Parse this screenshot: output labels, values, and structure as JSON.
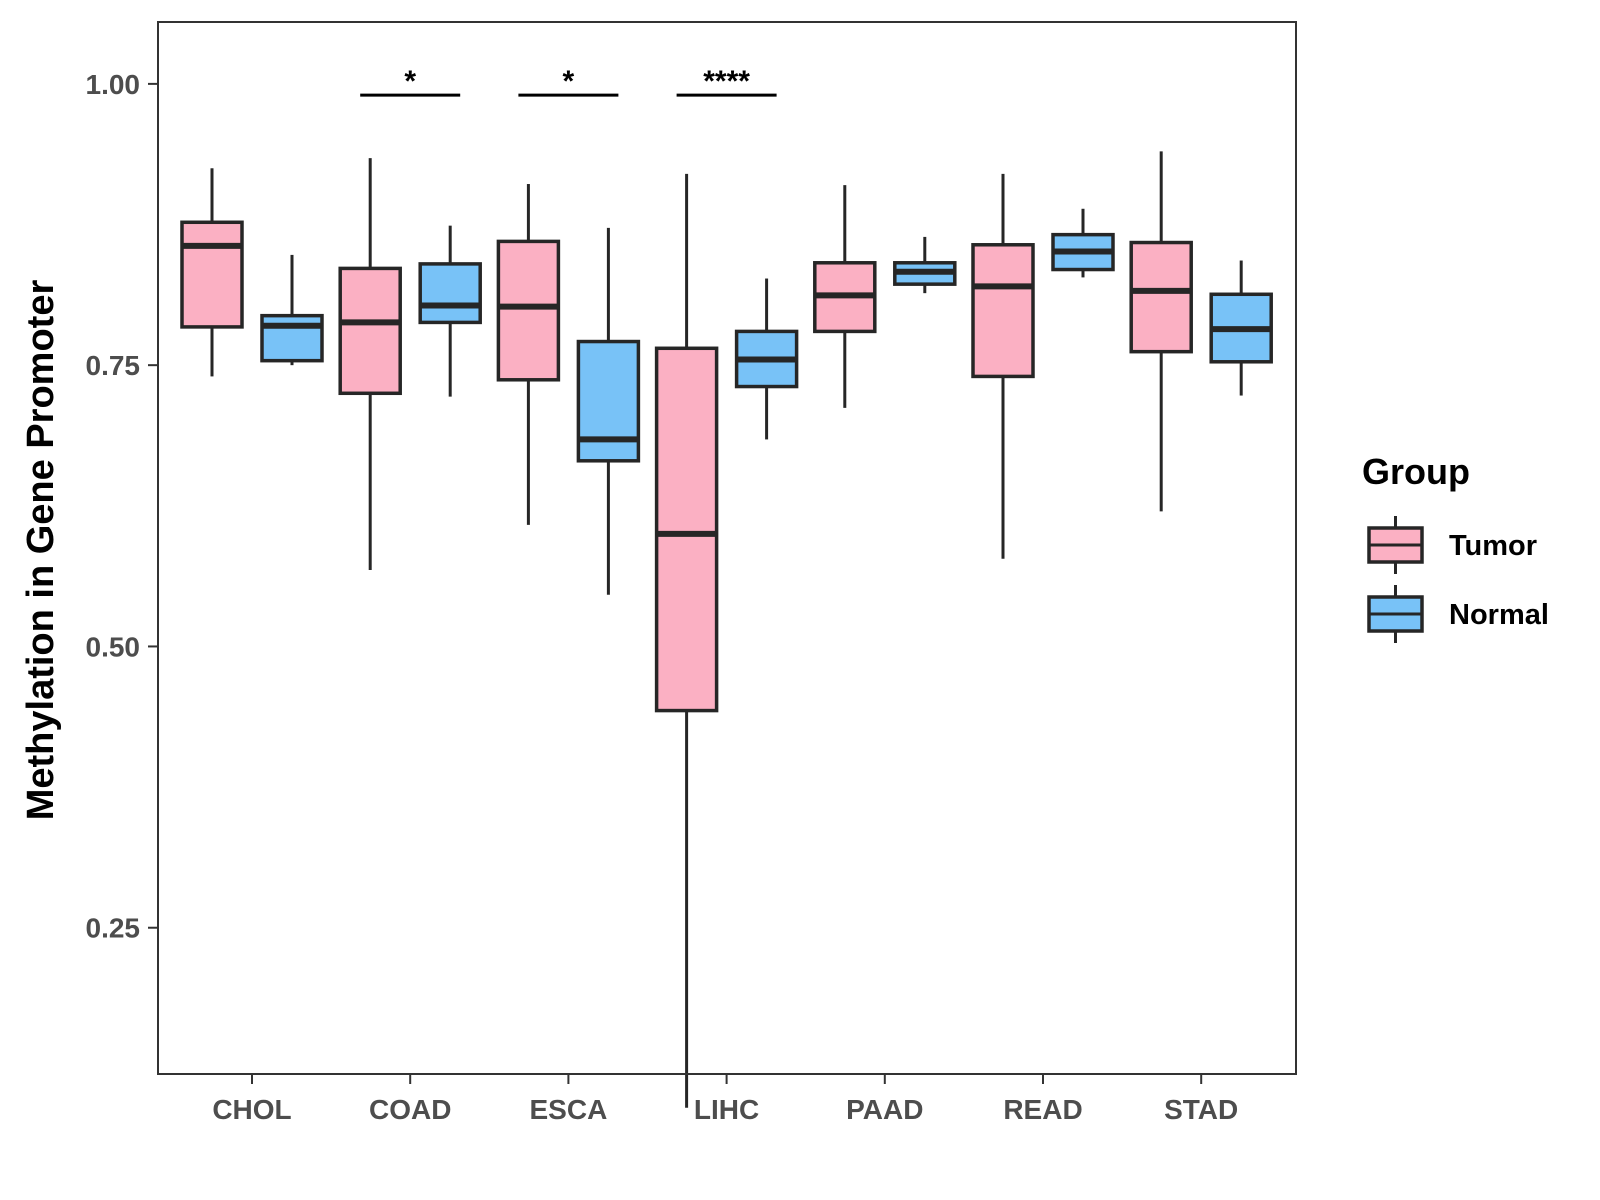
{
  "chart_data": {
    "type": "box",
    "title": "",
    "xlabel": "",
    "ylabel": "Methylation in Gene Promoter",
    "ylim": [
      0.12,
      1.055
    ],
    "yticks": [
      0.25,
      0.5,
      0.75,
      1.0
    ],
    "ytick_labels": [
      "0.25",
      "0.50",
      "0.75",
      "1.00"
    ],
    "categories": [
      "CHOL",
      "COAD",
      "ESCA",
      "LIHC",
      "PAAD",
      "READ",
      "STAD"
    ],
    "legend": {
      "title": "Group",
      "position": "right",
      "items": [
        {
          "name": "Tumor",
          "color": "#fbb0c3"
        },
        {
          "name": "Normal",
          "color": "#78c2f7"
        }
      ]
    },
    "series": [
      {
        "name": "Tumor",
        "color": "#fbb0c3",
        "boxes": [
          {
            "min": 0.74,
            "q1": 0.784,
            "median": 0.856,
            "q3": 0.877,
            "max": 0.925
          },
          {
            "min": 0.568,
            "q1": 0.725,
            "median": 0.788,
            "q3": 0.836,
            "max": 0.934
          },
          {
            "min": 0.608,
            "q1": 0.737,
            "median": 0.802,
            "q3": 0.86,
            "max": 0.911
          },
          {
            "min": 0.09,
            "q1": 0.443,
            "median": 0.6,
            "q3": 0.765,
            "max": 0.92
          },
          {
            "min": 0.712,
            "q1": 0.78,
            "median": 0.812,
            "q3": 0.841,
            "max": 0.91
          },
          {
            "min": 0.578,
            "q1": 0.74,
            "median": 0.82,
            "q3": 0.857,
            "max": 0.92
          },
          {
            "min": 0.62,
            "q1": 0.762,
            "median": 0.816,
            "q3": 0.859,
            "max": 0.94
          }
        ]
      },
      {
        "name": "Normal",
        "color": "#78c2f7",
        "boxes": [
          {
            "min": 0.75,
            "q1": 0.754,
            "median": 0.785,
            "q3": 0.794,
            "max": 0.848
          },
          {
            "min": 0.722,
            "q1": 0.788,
            "median": 0.803,
            "q3": 0.84,
            "max": 0.874
          },
          {
            "min": 0.546,
            "q1": 0.665,
            "median": 0.684,
            "q3": 0.771,
            "max": 0.872
          },
          {
            "min": 0.684,
            "q1": 0.731,
            "median": 0.755,
            "q3": 0.78,
            "max": 0.827
          },
          {
            "min": 0.814,
            "q1": 0.822,
            "median": 0.833,
            "q3": 0.841,
            "max": 0.864
          },
          {
            "min": 0.828,
            "q1": 0.835,
            "median": 0.851,
            "q3": 0.866,
            "max": 0.889
          },
          {
            "min": 0.723,
            "q1": 0.753,
            "median": 0.782,
            "q3": 0.813,
            "max": 0.843
          }
        ]
      }
    ],
    "annotations": [
      {
        "category": "COAD",
        "label": "*",
        "y": 0.99
      },
      {
        "category": "ESCA",
        "label": "*",
        "y": 0.99
      },
      {
        "category": "LIHC",
        "label": "****",
        "y": 0.99
      }
    ]
  }
}
